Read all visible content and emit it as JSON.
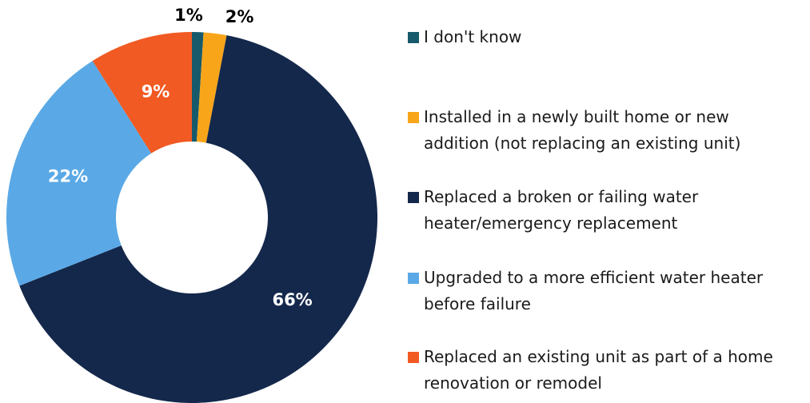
{
  "chart_data": {
    "type": "donut",
    "categories": [
      "I don't know",
      "Installed in a newly built home or new addition (not replacing an existing unit)",
      "Replaced a broken or failing water heater/emergency replacement",
      "Upgraded to a more efficient water heater before failure",
      "Replaced an existing unit as part of a home renovation or remodel"
    ],
    "values": [
      1,
      2,
      66,
      22,
      9
    ],
    "value_labels": [
      "1%",
      "2%",
      "66%",
      "22%",
      "9%"
    ],
    "colors": [
      "#175a6b",
      "#f9a51a",
      "#14284b",
      "#5aa9e6",
      "#f15a22"
    ],
    "legend": "right"
  }
}
